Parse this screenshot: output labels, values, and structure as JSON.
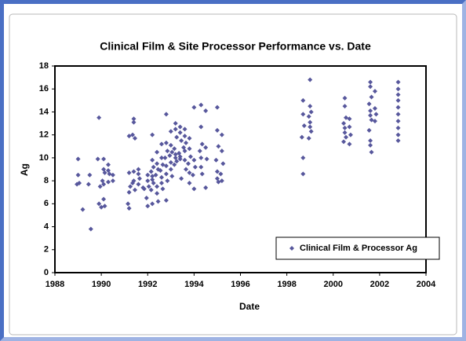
{
  "chart_data": {
    "type": "scatter",
    "title": "Clinical Film & Site Processor Performance vs. Date",
    "x_label": "Date",
    "y_label": "Ag",
    "xlim": [
      1988,
      2004
    ],
    "xticks": [
      1988,
      1990,
      1992,
      1994,
      1996,
      1998,
      2000,
      2002,
      2004
    ],
    "ylim": [
      0,
      18
    ],
    "yticks": [
      0,
      2,
      4,
      6,
      8,
      10,
      12,
      14,
      16,
      18
    ],
    "grid": false,
    "legend": "lower right",
    "x": [
      1989.0,
      1989.0,
      1989.05,
      1988.95,
      1989.2,
      1989.5,
      1989.55,
      1989.45,
      1989.9,
      1989.85,
      1989.95,
      1989.9,
      1990.0,
      1990.1,
      1990.1,
      1990.15,
      1990.05,
      1990.1,
      1990.1,
      1990.15,
      1990.3,
      1990.3,
      1990.35,
      1990.3,
      1990.5,
      1990.5,
      1991.2,
      1991.2,
      1991.25,
      1991.2,
      1991.15,
      1991.2,
      1991.4,
      1991.4,
      1991.35,
      1991.45,
      1991.4,
      1991.4,
      1991.35,
      1991.45,
      1991.6,
      1991.6,
      1991.65,
      1991.6,
      1991.8,
      1991.85,
      1992.0,
      1992.0,
      1992.05,
      1991.95,
      1992.0,
      1992.2,
      1992.2,
      1992.25,
      1992.15,
      1992.2,
      1992.2,
      1992.25,
      1992.15,
      1992.2,
      1992.4,
      1992.4,
      1992.45,
      1992.35,
      1992.4,
      1992.4,
      1992.45,
      1992.6,
      1992.6,
      1992.65,
      1992.55,
      1992.6,
      1992.6,
      1992.65,
      1992.8,
      1992.8,
      1992.85,
      1992.75,
      1992.8,
      1992.8,
      1992.85,
      1992.8,
      1993.0,
      1993.0,
      1993.05,
      1992.95,
      1993.0,
      1993.0,
      1993.05,
      1993.2,
      1993.2,
      1993.25,
      1993.15,
      1993.2,
      1993.2,
      1993.25,
      1993.15,
      1993.4,
      1993.4,
      1993.45,
      1993.35,
      1993.4,
      1993.4,
      1993.45,
      1993.6,
      1993.6,
      1993.65,
      1993.55,
      1993.6,
      1993.6,
      1993.65,
      1993.8,
      1993.8,
      1993.85,
      1993.75,
      1993.8,
      1993.8,
      1994.0,
      1994.0,
      1994.05,
      1993.95,
      1994.0,
      1994.3,
      1994.3,
      1994.35,
      1994.25,
      1994.3,
      1994.3,
      1994.35,
      1994.5,
      1994.5,
      1994.55,
      1994.5,
      1995.0,
      1995.0,
      1995.05,
      1994.95,
      1995.0,
      1995.0,
      1995.05,
      1995.2,
      1995.2,
      1995.25,
      1995.15,
      1995.2,
      1998.7,
      1998.7,
      1998.75,
      1998.65,
      1998.7,
      1998.7,
      1999.0,
      1999.0,
      1999.05,
      1998.95,
      1999.0,
      1999.0,
      1999.05,
      1998.95,
      2000.5,
      2000.5,
      2000.55,
      2000.45,
      2000.5,
      2000.5,
      2000.55,
      2000.45,
      2000.7,
      2000.7,
      2000.75,
      2000.7,
      2001.6,
      2001.6,
      2001.65,
      2001.55,
      2001.6,
      2001.6,
      2001.65,
      2001.55,
      2001.6,
      2001.6,
      2001.65,
      2001.8,
      2001.8,
      2001.85,
      2001.8,
      2002.8,
      2002.8,
      2002.8,
      2002.8,
      2002.8,
      2002.8,
      2002.8,
      2002.8,
      2002.8,
      2002.8
    ],
    "series": [
      {
        "name": "Clinical Film & Processor Ag",
        "color": "#57579c",
        "values": [
          9.9,
          8.5,
          7.8,
          7.7,
          5.5,
          8.5,
          3.8,
          7.7,
          13.5,
          9.9,
          7.5,
          6.0,
          5.7,
          9.9,
          9.0,
          8.7,
          8.0,
          7.7,
          6.4,
          5.8,
          9.4,
          8.9,
          8.6,
          7.9,
          8.5,
          8.0,
          11.9,
          8.7,
          7.5,
          7.0,
          6.0,
          5.6,
          13.4,
          13.1,
          12.0,
          11.7,
          8.8,
          8.0,
          7.8,
          7.2,
          9.0,
          8.6,
          8.2,
          7.7,
          7.4,
          7.3,
          8.5,
          8.0,
          7.5,
          6.5,
          5.8,
          12.0,
          9.8,
          9.2,
          8.8,
          8.4,
          8.1,
          7.8,
          7.2,
          6.0,
          10.5,
          9.5,
          9.0,
          8.5,
          7.5,
          6.9,
          6.2,
          11.2,
          10.0,
          9.4,
          8.9,
          8.3,
          7.8,
          7.3,
          13.8,
          11.3,
          10.6,
          10.0,
          9.3,
          8.6,
          8.0,
          6.3,
          12.3,
          11.1,
          10.5,
          10.2,
          9.6,
          9.0,
          8.4,
          13.0,
          12.5,
          11.8,
          10.8,
          10.3,
          10.0,
          9.7,
          9.4,
          12.7,
          12.2,
          11.5,
          10.4,
          10.1,
          9.9,
          8.2,
          12.5,
          11.9,
          11.3,
          10.9,
          10.6,
          9.8,
          9.0,
          11.7,
          10.8,
          10.1,
          9.5,
          8.7,
          7.8,
          14.4,
          9.8,
          9.2,
          8.5,
          7.3,
          14.6,
          12.7,
          11.2,
          10.6,
          10.0,
          9.2,
          8.6,
          14.1,
          10.9,
          9.9,
          7.4,
          14.4,
          12.4,
          11.0,
          9.8,
          8.8,
          8.2,
          7.9,
          12.0,
          10.6,
          9.5,
          8.6,
          8.0,
          15.0,
          13.8,
          12.8,
          11.8,
          10.0,
          8.6,
          16.8,
          14.5,
          14.0,
          13.6,
          13.1,
          12.7,
          12.3,
          11.7,
          15.2,
          14.5,
          13.5,
          13.0,
          12.6,
          12.2,
          11.8,
          11.4,
          13.4,
          12.7,
          12.0,
          11.2,
          16.6,
          16.2,
          15.3,
          14.7,
          14.1,
          13.7,
          13.3,
          12.4,
          11.5,
          11.1,
          10.5,
          15.8,
          14.3,
          13.8,
          13.2,
          16.6,
          16.0,
          15.5,
          15.0,
          14.4,
          13.8,
          13.2,
          12.6,
          12.0,
          11.5
        ]
      }
    ]
  }
}
